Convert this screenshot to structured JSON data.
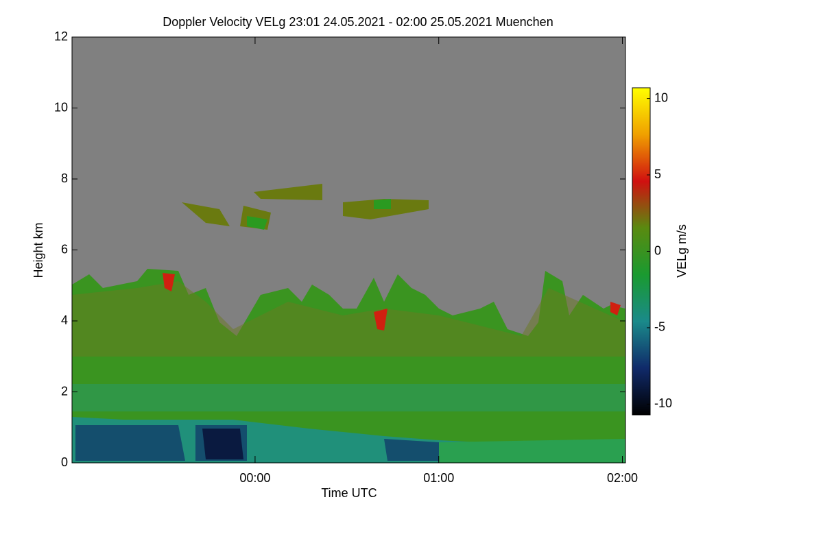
{
  "chart_data": {
    "type": "heatmap",
    "title": "Doppler Velocity VELg   23:01 24.05.2021 - 02:00 25.05.2021 Muenchen",
    "xlabel": "Time UTC",
    "ylabel": "Height km",
    "xlim": [
      -59.8,
      121
    ],
    "xticks": [
      {
        "value": 0,
        "label": "00:00"
      },
      {
        "value": 60,
        "label": "01:00"
      },
      {
        "value": 120,
        "label": "02:00"
      }
    ],
    "ylim": [
      0,
      12
    ],
    "yticks": [
      0,
      2,
      4,
      6,
      8,
      10,
      12
    ],
    "colorbar": {
      "label": "VELg m/s",
      "lim": [
        -10.7,
        10.7
      ],
      "ticks": [
        -10,
        -5,
        0,
        5,
        10
      ],
      "colormap": [
        "#000000",
        "#102a6a",
        "#1a8a8a",
        "#1a9a30",
        "#5a8a10",
        "#d01010",
        "#f0a000",
        "#ffff00"
      ]
    },
    "background": "#808080"
  }
}
